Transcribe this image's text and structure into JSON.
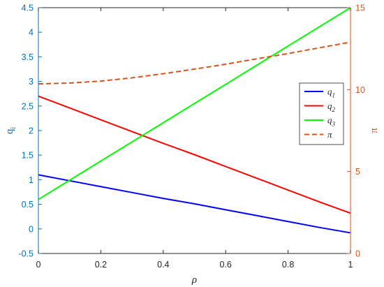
{
  "chart_data": {
    "type": "line",
    "title": "",
    "xlabel": "ρ",
    "ylabel_left": "q_i",
    "ylabel_right": "π",
    "xlim": [
      0,
      1
    ],
    "ylim_left": [
      -0.5,
      4.5
    ],
    "ylim_right": [
      0,
      15
    ],
    "x_ticks": [
      "0",
      "0.2",
      "0.4",
      "0.6",
      "0.8",
      "1"
    ],
    "y_left_ticks": [
      "-0.5",
      "0",
      "0.5",
      "1",
      "1.5",
      "2",
      "2.5",
      "3",
      "3.5",
      "4",
      "4.5"
    ],
    "y_right_ticks": [
      "0",
      "5",
      "10",
      "15"
    ],
    "grid": false,
    "legend_position": "right",
    "colors": {
      "left_axis": "#0072bd",
      "right_axis": "#d95319",
      "box": "#262626"
    },
    "x": [
      0,
      0.1,
      0.2,
      0.3,
      0.4,
      0.5,
      0.6,
      0.7,
      0.8,
      0.9,
      1.0
    ],
    "series": [
      {
        "name": "q1",
        "label_base": "q",
        "label_sub": "1",
        "axis": "left",
        "color": "#0000ff",
        "style": "solid",
        "values": [
          1.1,
          0.98,
          0.86,
          0.74,
          0.62,
          0.51,
          0.39,
          0.27,
          0.15,
          0.03,
          -0.08
        ]
      },
      {
        "name": "q2",
        "label_base": "q",
        "label_sub": "2",
        "axis": "left",
        "color": "#ff0000",
        "style": "solid",
        "values": [
          2.7,
          2.46,
          2.22,
          1.98,
          1.74,
          1.51,
          1.27,
          1.03,
          0.79,
          0.55,
          0.32
        ]
      },
      {
        "name": "q3",
        "label_base": "q",
        "label_sub": "3",
        "axis": "left",
        "color": "#00ff00",
        "style": "solid",
        "values": [
          0.6,
          0.99,
          1.38,
          1.77,
          2.16,
          2.55,
          2.94,
          3.33,
          3.72,
          4.11,
          4.5
        ]
      },
      {
        "name": "π",
        "label_base": "π",
        "label_sub": "",
        "axis": "right",
        "color": "#d95319",
        "style": "dashed",
        "values": [
          10.35,
          10.4,
          10.52,
          10.72,
          10.97,
          11.25,
          11.55,
          11.88,
          12.2,
          12.55,
          12.9
        ]
      }
    ]
  }
}
